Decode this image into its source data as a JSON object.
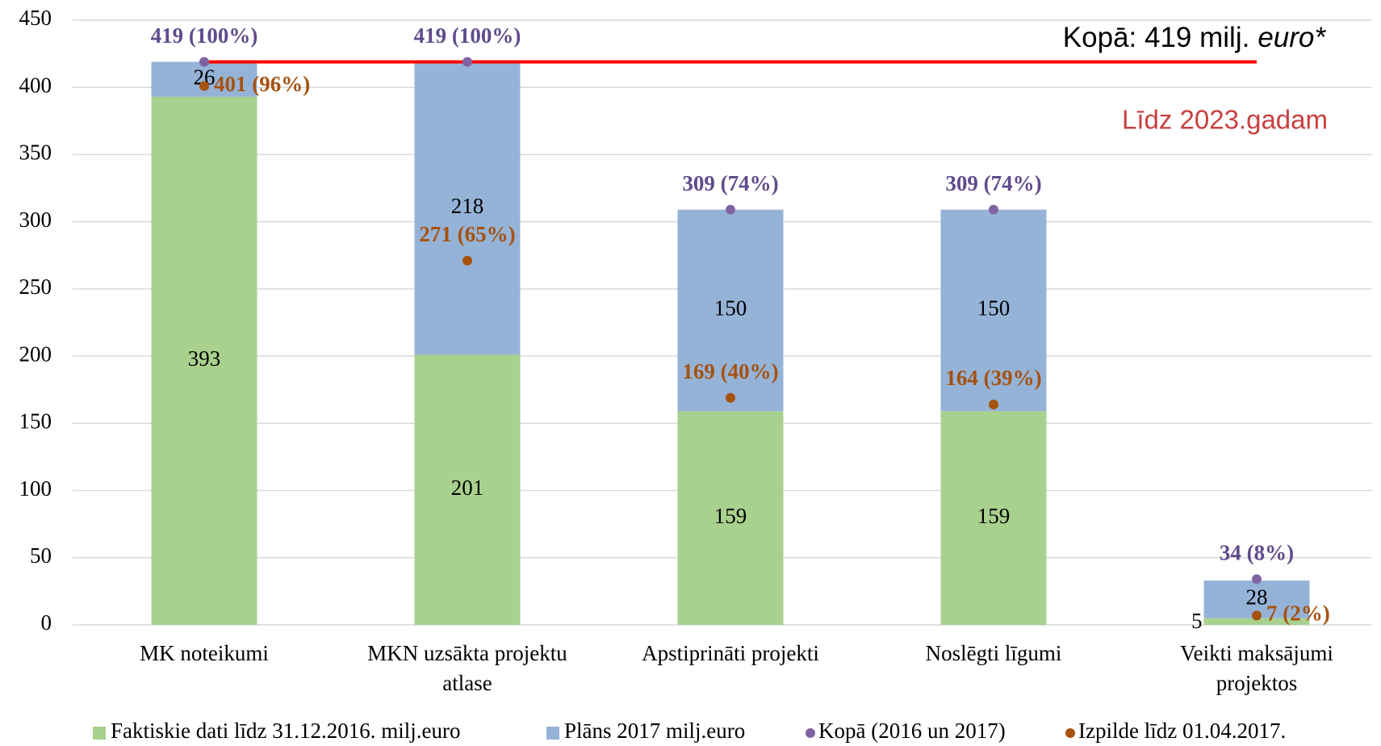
{
  "chart_data": {
    "type": "bar",
    "stacked": true,
    "categories": [
      "MK noteikumi",
      "MKN uzsākta projektu atlase",
      "Apstiprināti projekti",
      "Noslēgti līgumi",
      "Veikti maksājumi projektos"
    ],
    "series": [
      {
        "name": "Faktiskie dati līdz 31.12.2016. milj.euro",
        "color": "#a9d18e",
        "values": [
          393,
          201,
          159,
          159,
          5
        ]
      },
      {
        "name": "Plāns 2017 milj.euro",
        "color": "#95b3d7",
        "values": [
          26,
          218,
          150,
          150,
          28
        ]
      }
    ],
    "point_series": [
      {
        "name": "Kopā (2016 un 2017)",
        "color": "#8064a2",
        "label_color": "#5f4b8b",
        "values": [
          419,
          419,
          309,
          309,
          34
        ],
        "value_labels": [
          "419 (100%)",
          "419 (100%)",
          "309 (74%)",
          "309 (74%)",
          "34 (8%)"
        ]
      },
      {
        "name": "Izpilde līdz 01.04.2017.",
        "color": "#a5520f",
        "label_color": "#a5520f",
        "values": [
          401,
          271,
          169,
          164,
          7
        ],
        "value_labels": [
          "401 (96%)",
          "271 (65%)",
          "169 (40%)",
          "164 (39%)",
          "7 (2%)"
        ]
      }
    ],
    "reference_line": {
      "value": 419,
      "color": "#ff0000",
      "label": [
        "Kopā: 419 milj.",
        "euro*"
      ]
    },
    "note": "Līdz 2023.gadam",
    "ylim": [
      0,
      450
    ],
    "yticks": [
      0,
      50,
      100,
      150,
      200,
      250,
      300,
      350,
      400,
      450
    ],
    "grid": true
  }
}
